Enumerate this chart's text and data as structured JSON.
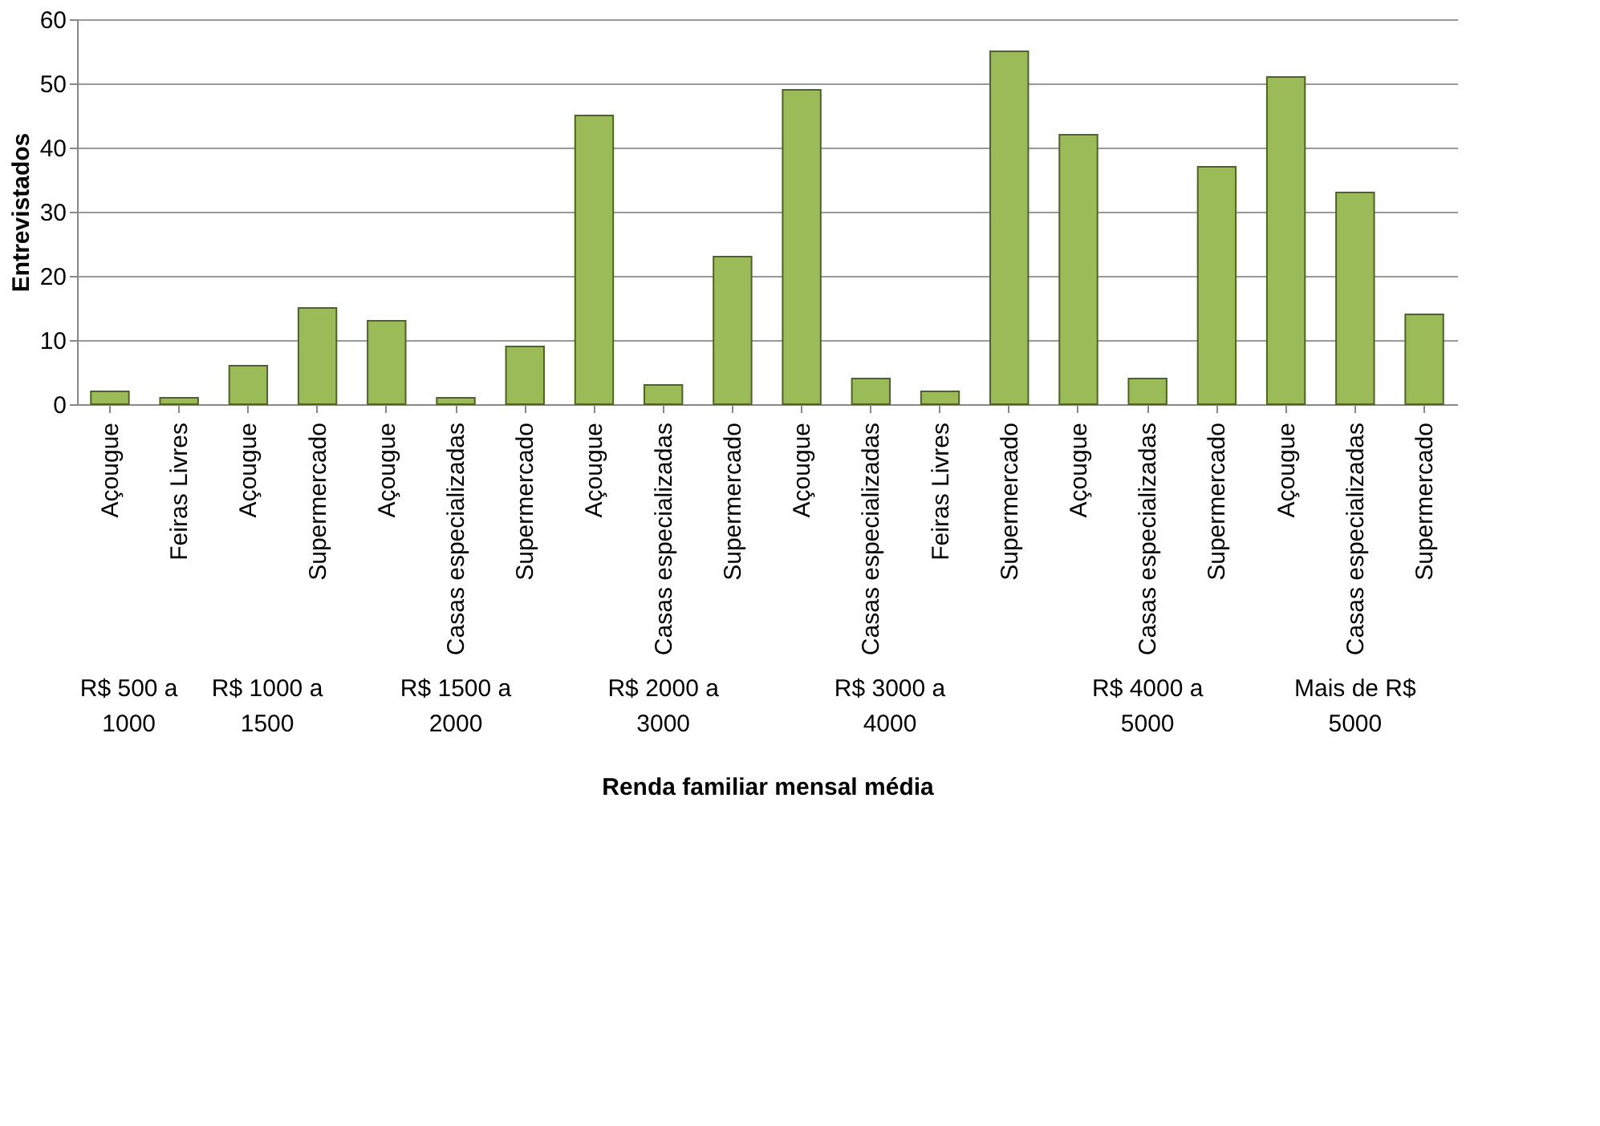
{
  "chart_data": {
    "type": "bar",
    "xlabel": "Renda familiar mensal média",
    "ylabel": "Entrevistados",
    "categories": [
      "Açougue",
      "Feiras Livres",
      "Açougue",
      "Supermercado",
      "Açougue",
      "Casas especializadas",
      "Supermercado",
      "Açougue",
      "Casas especializadas",
      "Supermercado",
      "Açougue",
      "Casas especializadas",
      "Feiras Livres",
      "Supermercado",
      "Açougue",
      "Casas especializadas",
      "Supermercado",
      "Açougue",
      "Casas especializadas",
      "Supermercado"
    ],
    "values": [
      2,
      1,
      6,
      15,
      13,
      1,
      9,
      45,
      3,
      23,
      49,
      4,
      2,
      55,
      42,
      4,
      37,
      51,
      33,
      14
    ],
    "color": "#9bbb59",
    "ylim": [
      0,
      60
    ],
    "yticks": [
      0,
      10,
      20,
      30,
      40,
      50,
      60
    ],
    "grid": "y",
    "annotations": [
      "R$ 500 a 1000",
      "R$ 1000 a 1500",
      "R$ 1500 a 2000",
      "R$ 2000 a 3000",
      "R$ 3000 a 4000",
      "R$ 4000 a 5000",
      "Mais de R$ 5000"
    ]
  }
}
